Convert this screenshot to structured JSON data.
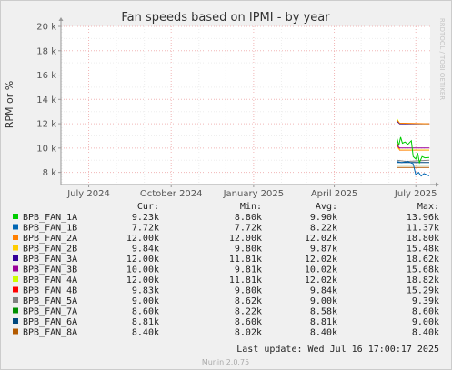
{
  "chart_data": {
    "type": "line",
    "title": "Fan speeds based on IPMI - by year",
    "ylabel": "RPM or %",
    "xlabel": "",
    "ylim": [
      7000,
      20000
    ],
    "y_ticks": [
      {
        "value": 8000,
        "label": "8 k"
      },
      {
        "value": 10000,
        "label": "10 k"
      },
      {
        "value": 12000,
        "label": "12 k"
      },
      {
        "value": 14000,
        "label": "14 k"
      },
      {
        "value": 16000,
        "label": "16 k"
      },
      {
        "value": 18000,
        "label": "18 k"
      },
      {
        "value": 20000,
        "label": "20 k"
      }
    ],
    "x_range": [
      "2024-05-31",
      "2025-07-17"
    ],
    "x_ticks": [
      {
        "date": "2024-07-01",
        "label": "July 2024"
      },
      {
        "date": "2024-10-01",
        "label": "October 2024"
      },
      {
        "date": "2025-01-01",
        "label": "January 2025"
      },
      {
        "date": "2025-04-01",
        "label": "April 2025"
      },
      {
        "date": "2025-07-01",
        "label": "July 2025"
      }
    ],
    "grid": true,
    "watermark": "RRDTOOL / TOBI OETIKER",
    "legend_headers": {
      "cur": "Cur:",
      "min": "Min:",
      "avg": "Avg:",
      "max": "Max:"
    },
    "series": [
      {
        "name": "BPB_FAN_1A",
        "color": "#00cc00",
        "cur": "9.23k",
        "min": "8.80k",
        "avg": "9.90k",
        "max": "13.96k",
        "points": [
          [
            "2025-06-10",
            10800
          ],
          [
            "2025-06-12",
            10200
          ],
          [
            "2025-06-14",
            10900
          ],
          [
            "2025-06-16",
            10400
          ],
          [
            "2025-06-19",
            10500
          ],
          [
            "2025-06-22",
            10300
          ],
          [
            "2025-06-26",
            10600
          ],
          [
            "2025-06-28",
            9300
          ],
          [
            "2025-07-01",
            9100
          ],
          [
            "2025-07-03",
            9600
          ],
          [
            "2025-07-05",
            8800
          ],
          [
            "2025-07-08",
            9300
          ],
          [
            "2025-07-11",
            9200
          ],
          [
            "2025-07-16",
            9230
          ]
        ]
      },
      {
        "name": "BPB_FAN_1B",
        "color": "#0066b3",
        "cur": "7.72k",
        "min": "7.72k",
        "avg": "8.22k",
        "max": "11.37k",
        "points": [
          [
            "2025-06-10",
            8900
          ],
          [
            "2025-06-15",
            8800
          ],
          [
            "2025-06-22",
            8900
          ],
          [
            "2025-06-28",
            8700
          ],
          [
            "2025-07-01",
            7800
          ],
          [
            "2025-07-04",
            8000
          ],
          [
            "2025-07-07",
            7700
          ],
          [
            "2025-07-10",
            7900
          ],
          [
            "2025-07-16",
            7720
          ]
        ]
      },
      {
        "name": "BPB_FAN_2A",
        "color": "#ff8000",
        "cur": "12.00k",
        "min": "12.00k",
        "avg": "12.02k",
        "max": "18.80k",
        "points": [
          [
            "2025-06-10",
            12300
          ],
          [
            "2025-06-13",
            12050
          ],
          [
            "2025-07-16",
            12000
          ]
        ]
      },
      {
        "name": "BPB_FAN_2B",
        "color": "#ffcc00",
        "cur": "9.84k",
        "min": "9.80k",
        "avg": "9.87k",
        "max": "15.48k",
        "points": [
          [
            "2025-06-10",
            10100
          ],
          [
            "2025-06-13",
            9850
          ],
          [
            "2025-07-16",
            9840
          ]
        ]
      },
      {
        "name": "BPB_FAN_3A",
        "color": "#330099",
        "cur": "12.00k",
        "min": "11.81k",
        "avg": "12.02k",
        "max": "18.62k",
        "points": [
          [
            "2025-06-10",
            12200
          ],
          [
            "2025-06-13",
            12000
          ],
          [
            "2025-07-16",
            12000
          ]
        ]
      },
      {
        "name": "BPB_FAN_3B",
        "color": "#990099",
        "cur": "10.00k",
        "min": "9.81k",
        "avg": "10.02k",
        "max": "15.68k",
        "points": [
          [
            "2025-06-10",
            10200
          ],
          [
            "2025-06-13",
            10000
          ],
          [
            "2025-07-16",
            10000
          ]
        ]
      },
      {
        "name": "BPB_FAN_4A",
        "color": "#ccff00",
        "cur": "12.00k",
        "min": "11.81k",
        "avg": "12.02k",
        "max": "18.82k",
        "points": [
          [
            "2025-06-10",
            12400
          ],
          [
            "2025-06-13",
            12000
          ],
          [
            "2025-07-16",
            12000
          ]
        ]
      },
      {
        "name": "BPB_FAN_4B",
        "color": "#ff0000",
        "cur": "9.83k",
        "min": "9.80k",
        "avg": "9.84k",
        "max": "15.29k",
        "points": [
          [
            "2025-06-10",
            10400
          ],
          [
            "2025-06-13",
            9830
          ],
          [
            "2025-07-16",
            9830
          ]
        ]
      },
      {
        "name": "BPB_FAN_5A",
        "color": "#808080",
        "cur": "9.00k",
        "min": "8.62k",
        "avg": "9.00k",
        "max": "9.39k",
        "points": [
          [
            "2025-06-10",
            9000
          ],
          [
            "2025-06-20",
            8900
          ],
          [
            "2025-07-16",
            9000
          ]
        ]
      },
      {
        "name": "BPB_FAN_7A",
        "color": "#008f00",
        "cur": "8.60k",
        "min": "8.22k",
        "avg": "8.58k",
        "max": "8.60k",
        "points": [
          [
            "2025-06-10",
            8600
          ],
          [
            "2025-07-16",
            8600
          ]
        ]
      },
      {
        "name": "BPB_FAN_6A",
        "color": "#00487d",
        "cur": "8.81k",
        "min": "8.60k",
        "avg": "8.81k",
        "max": "9.00k",
        "points": [
          [
            "2025-06-10",
            8810
          ],
          [
            "2025-07-16",
            8810
          ]
        ]
      },
      {
        "name": "BPB_FAN_8A",
        "color": "#b35a00",
        "cur": "8.40k",
        "min": "8.02k",
        "avg": "8.40k",
        "max": "8.40k",
        "points": [
          [
            "2025-06-10",
            8400
          ],
          [
            "2025-07-16",
            8400
          ]
        ]
      }
    ],
    "last_update": "Last update: Wed Jul 16 17:00:17 2025",
    "footer": "Munin 2.0.75"
  }
}
